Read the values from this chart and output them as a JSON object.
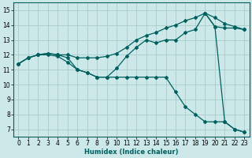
{
  "xlabel": "Humidex (Indice chaleur)",
  "xlim": [
    -0.5,
    23.5
  ],
  "ylim": [
    6.5,
    15.5
  ],
  "xticks": [
    0,
    1,
    2,
    3,
    4,
    5,
    6,
    7,
    8,
    9,
    10,
    11,
    12,
    13,
    14,
    15,
    16,
    17,
    18,
    19,
    20,
    21,
    22,
    23
  ],
  "yticks": [
    7,
    8,
    9,
    10,
    11,
    12,
    13,
    14,
    15
  ],
  "bg_color": "#cce8e8",
  "grid_color_major": "#aacccc",
  "grid_color_minor": "#bbdddd",
  "line_color": "#006060",
  "line1_x": [
    0,
    1,
    2,
    3,
    4,
    5,
    6,
    7,
    8,
    9,
    10,
    11,
    12,
    13,
    14,
    15,
    16,
    17,
    18,
    19,
    20,
    21,
    22,
    23
  ],
  "line1_y": [
    11.4,
    11.8,
    12.0,
    12.1,
    12.0,
    12.0,
    11.8,
    11.8,
    11.8,
    11.9,
    12.1,
    12.5,
    13.0,
    13.3,
    13.5,
    13.8,
    14.0,
    14.3,
    14.5,
    14.8,
    14.5,
    14.1,
    13.9,
    13.7
  ],
  "line2_x": [
    0,
    1,
    2,
    3,
    4,
    5,
    6,
    7,
    8,
    9,
    10,
    11,
    12,
    13,
    14,
    15,
    16,
    17,
    18,
    19,
    20,
    21,
    22,
    23
  ],
  "line2_y": [
    11.4,
    11.8,
    12.0,
    12.1,
    12.0,
    11.8,
    11.0,
    10.8,
    10.5,
    10.5,
    11.1,
    11.9,
    12.5,
    13.0,
    12.8,
    13.0,
    13.0,
    13.5,
    13.7,
    14.8,
    13.9,
    13.8,
    13.8,
    13.7
  ],
  "line3_x": [
    0,
    1,
    2,
    3,
    4,
    5,
    6,
    7,
    8,
    9,
    10,
    11,
    12,
    13,
    14,
    15,
    16,
    17,
    18,
    19,
    20,
    21,
    22,
    23
  ],
  "line3_y": [
    11.4,
    11.8,
    12.0,
    12.0,
    11.9,
    11.5,
    11.0,
    10.8,
    10.5,
    10.5,
    10.5,
    10.5,
    10.5,
    10.5,
    10.5,
    10.5,
    9.5,
    8.5,
    8.0,
    7.5,
    7.5,
    7.5,
    7.0,
    6.8
  ],
  "line4_x": [
    19,
    20,
    21,
    22,
    23
  ],
  "line4_y": [
    14.8,
    13.9,
    7.5,
    7.0,
    6.8
  ]
}
